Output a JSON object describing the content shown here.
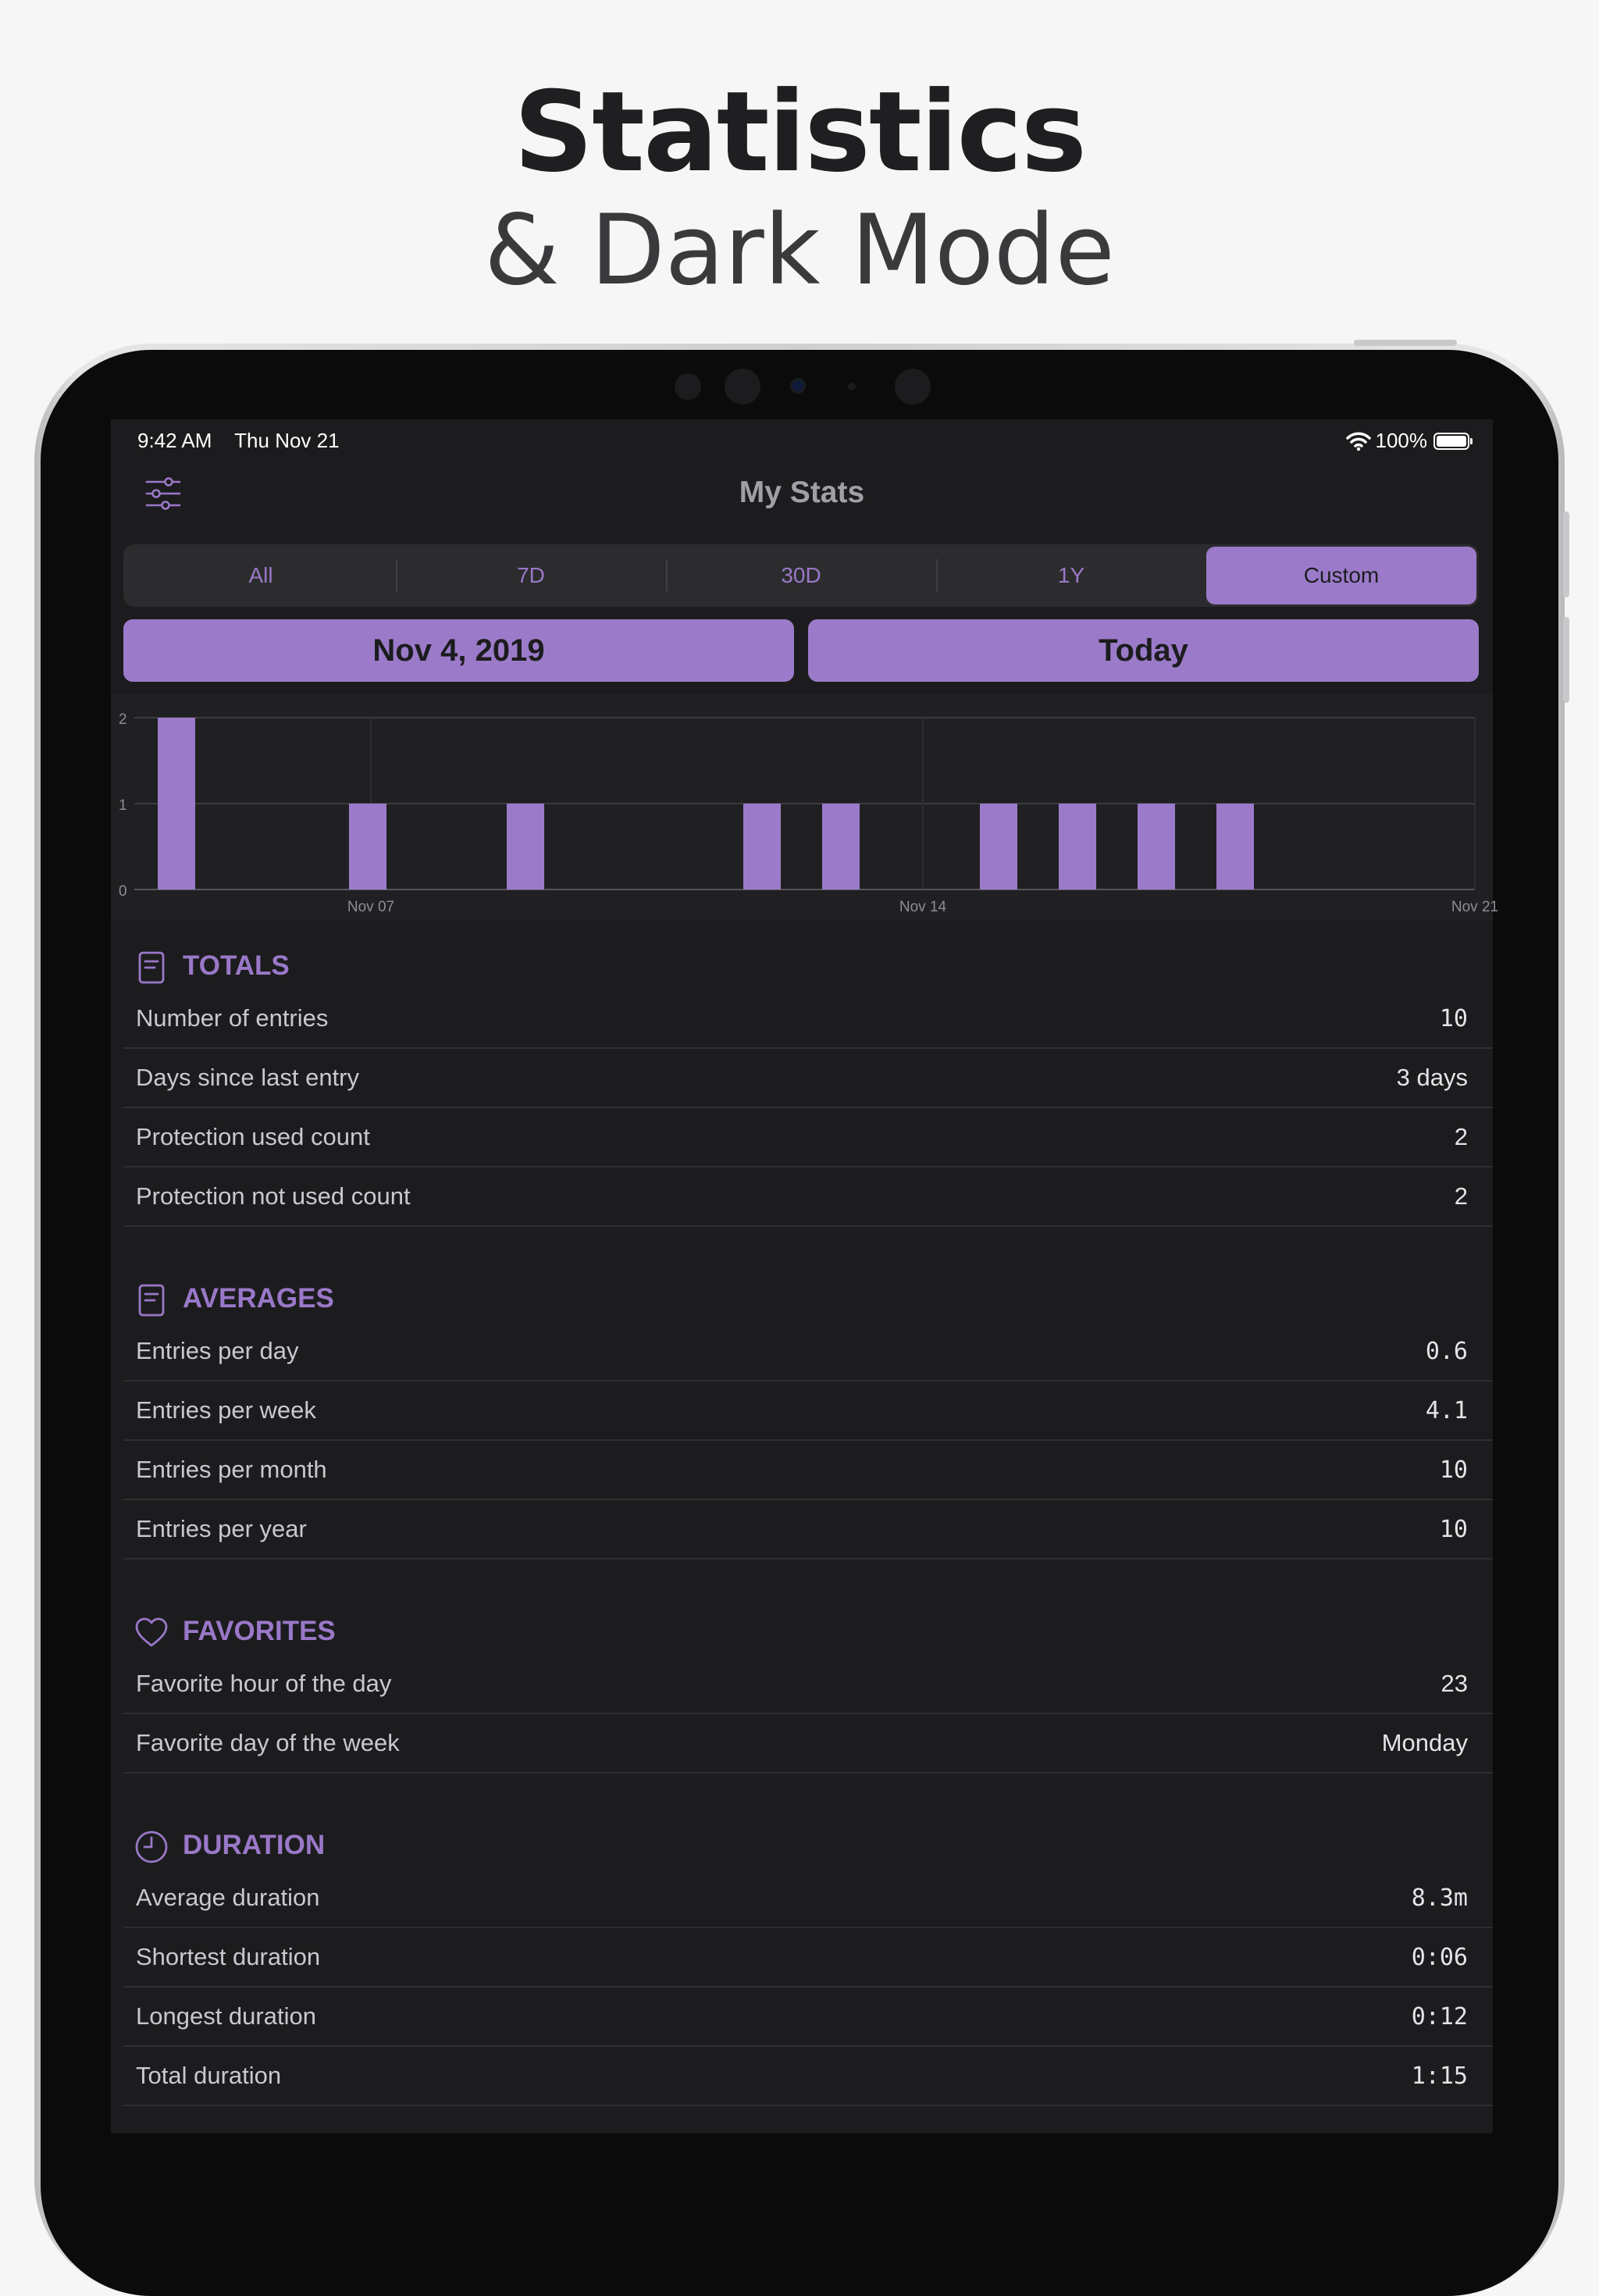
{
  "marketing": {
    "title": "Statistics",
    "subtitle": "& Dark Mode"
  },
  "status_bar": {
    "time": "9:42 AM",
    "date": "Thu Nov 21",
    "battery": "100%",
    "wifi_icon": "wifi-icon",
    "battery_icon": "battery-icon"
  },
  "navbar": {
    "title": "My Stats",
    "filter_icon": "sliders-icon"
  },
  "range_tabs": {
    "items": [
      "All",
      "7D",
      "30D",
      "1Y",
      "Custom"
    ],
    "selected": "Custom"
  },
  "date_range": {
    "start": "Nov 4, 2019",
    "end": "Today"
  },
  "colors": {
    "accent": "#9b7bc9",
    "background": "#1c1c1e",
    "row_divider": "#2e2e31"
  },
  "chart_data": {
    "type": "bar",
    "x_ticks": [
      "Nov 07",
      "Nov 14",
      "Nov 21"
    ],
    "y_ticks": [
      "0",
      "1",
      "2"
    ],
    "ylim": [
      0,
      2
    ],
    "categories": [
      "Nov 04",
      "Nov 05",
      "Nov 06",
      "Nov 07",
      "Nov 08",
      "Nov 09",
      "Nov 10",
      "Nov 11",
      "Nov 12",
      "Nov 13",
      "Nov 14",
      "Nov 15",
      "Nov 16",
      "Nov 17",
      "Nov 18",
      "Nov 19",
      "Nov 20",
      "Nov 21"
    ],
    "values": [
      2,
      0,
      0,
      1,
      0,
      1,
      0,
      0,
      1,
      1,
      0,
      1,
      1,
      1,
      1,
      0,
      0,
      0
    ],
    "color": "#9b7bc9",
    "grid": true
  },
  "sections": [
    {
      "title": "TOTALS",
      "icon": "document-icon",
      "rows": [
        {
          "label": "Number of entries",
          "value": "10",
          "mono": true
        },
        {
          "label": "Days since last entry",
          "value": "3 days",
          "mono": false
        },
        {
          "label": "Protection used count",
          "value": "2",
          "mono": false
        },
        {
          "label": "Protection not used count",
          "value": "2",
          "mono": false
        }
      ]
    },
    {
      "title": "AVERAGES",
      "icon": "document-icon",
      "rows": [
        {
          "label": "Entries per day",
          "value": "0.6",
          "mono": true
        },
        {
          "label": "Entries per week",
          "value": "4.1",
          "mono": true
        },
        {
          "label": "Entries per month",
          "value": "10",
          "mono": true
        },
        {
          "label": "Entries per year",
          "value": "10",
          "mono": true
        }
      ]
    },
    {
      "title": "FAVORITES",
      "icon": "heart-icon",
      "rows": [
        {
          "label": "Favorite hour of the day",
          "value": "23",
          "mono": false
        },
        {
          "label": "Favorite day of the week",
          "value": "Monday",
          "mono": false
        }
      ]
    },
    {
      "title": "DURATION",
      "icon": "clock-icon",
      "rows": [
        {
          "label": "Average duration",
          "value": "8.3m",
          "mono": true
        },
        {
          "label": "Shortest duration",
          "value": "0:06",
          "mono": true
        },
        {
          "label": "Longest duration",
          "value": "0:12",
          "mono": true
        },
        {
          "label": "Total duration",
          "value": "1:15",
          "mono": true
        }
      ]
    }
  ]
}
